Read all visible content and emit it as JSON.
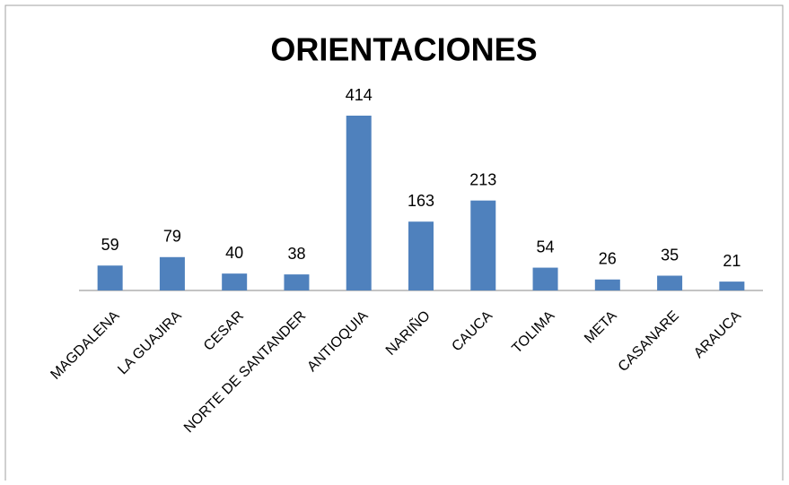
{
  "chart_data": {
    "type": "bar",
    "title": "ORIENTACIONES",
    "categories": [
      "MAGDALENA",
      "LA GUAJIRA",
      "CESAR",
      "NORTE DE SANTANDER",
      "ANTIOQUIA",
      "NARIÑO",
      "CAUCA",
      "TOLIMA",
      "META",
      "CASANARE",
      "ARAUCA"
    ],
    "values": [
      59,
      79,
      40,
      38,
      414,
      163,
      213,
      54,
      26,
      35,
      21
    ],
    "color": "#4f81bd"
  }
}
